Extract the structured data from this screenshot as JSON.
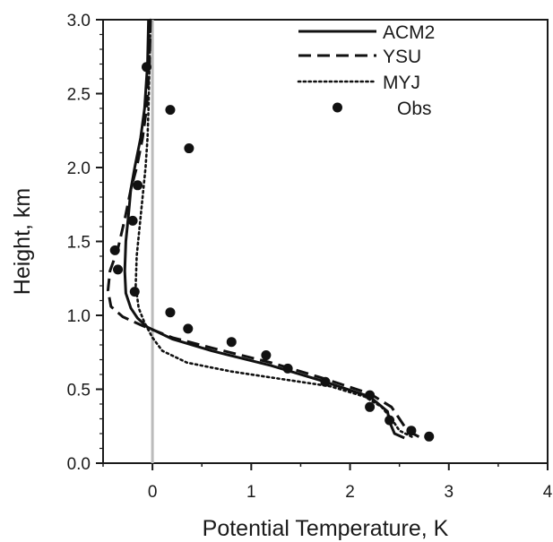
{
  "chart_data": {
    "type": "line",
    "title": "",
    "xlabel": "Potential Temperature, K",
    "ylabel": "Height, km",
    "xlim": [
      -0.5,
      4
    ],
    "ylim": [
      0,
      3
    ],
    "xticks": [
      0,
      1,
      2,
      3,
      4
    ],
    "yticks": [
      0.0,
      0.5,
      1.0,
      1.5,
      2.0,
      2.5,
      3.0
    ],
    "xtick_labels": [
      "0",
      "1",
      "2",
      "3",
      "4"
    ],
    "ytick_labels": [
      "0.0",
      "0.5",
      "1.0",
      "1.5",
      "2.0",
      "2.5",
      "3.0"
    ],
    "zero_line": {
      "x": 0,
      "color": "#bbbbbb"
    },
    "grid": false,
    "legend_position": "top-right",
    "series": [
      {
        "name": "ACM2",
        "style": "solid",
        "color": "#111111",
        "x": [
          -0.04,
          -0.05,
          -0.08,
          -0.12,
          -0.18,
          -0.22,
          -0.24,
          -0.27,
          -0.28,
          -0.27,
          -0.22,
          -0.15,
          -0.05,
          0.2,
          0.6,
          1.2,
          1.7,
          2.2,
          2.38,
          2.4,
          2.45,
          2.55
        ],
        "y": [
          3.0,
          2.7,
          2.4,
          2.2,
          2.0,
          1.85,
          1.7,
          1.5,
          1.3,
          1.15,
          1.05,
          0.98,
          0.92,
          0.84,
          0.76,
          0.66,
          0.56,
          0.45,
          0.35,
          0.28,
          0.2,
          0.17
        ]
      },
      {
        "name": "YSU",
        "style": "dashed",
        "color": "#111111",
        "x": [
          -0.02,
          -0.03,
          -0.06,
          -0.1,
          -0.16,
          -0.22,
          -0.28,
          -0.35,
          -0.43,
          -0.45,
          -0.42,
          -0.3,
          -0.1,
          0.2,
          0.6,
          1.2,
          1.7,
          2.2,
          2.42,
          2.5,
          2.58,
          2.72
        ],
        "y": [
          3.0,
          2.7,
          2.4,
          2.2,
          2.0,
          1.85,
          1.65,
          1.45,
          1.3,
          1.17,
          1.06,
          0.99,
          0.93,
          0.85,
          0.78,
          0.68,
          0.58,
          0.47,
          0.38,
          0.3,
          0.22,
          0.17
        ]
      },
      {
        "name": "MYJ",
        "style": "dotted",
        "color": "#111111",
        "x": [
          -0.02,
          -0.03,
          -0.04,
          -0.05,
          -0.07,
          -0.1,
          -0.13,
          -0.16,
          -0.17,
          -0.14,
          -0.08,
          0.0,
          0.1,
          0.35,
          0.8,
          1.3,
          1.8,
          2.15,
          2.32,
          2.42,
          2.5,
          2.65
        ],
        "y": [
          3.0,
          2.7,
          2.4,
          2.2,
          2.0,
          1.8,
          1.6,
          1.4,
          1.2,
          1.05,
          0.95,
          0.85,
          0.76,
          0.68,
          0.62,
          0.57,
          0.52,
          0.45,
          0.38,
          0.3,
          0.22,
          0.17
        ]
      }
    ],
    "observations": {
      "name": "Obs",
      "marker": "circle",
      "color": "#111111",
      "x": [
        -0.06,
        0.18,
        0.37,
        -0.15,
        -0.2,
        -0.38,
        -0.35,
        -0.18,
        0.18,
        0.36,
        0.8,
        1.15,
        1.37,
        1.75,
        2.2,
        2.2,
        2.4,
        2.62,
        2.8
      ],
      "y": [
        2.68,
        2.39,
        2.13,
        1.88,
        1.64,
        1.44,
        1.31,
        1.16,
        1.02,
        0.91,
        0.82,
        0.73,
        0.64,
        0.55,
        0.46,
        0.38,
        0.29,
        0.22,
        0.18
      ]
    }
  }
}
